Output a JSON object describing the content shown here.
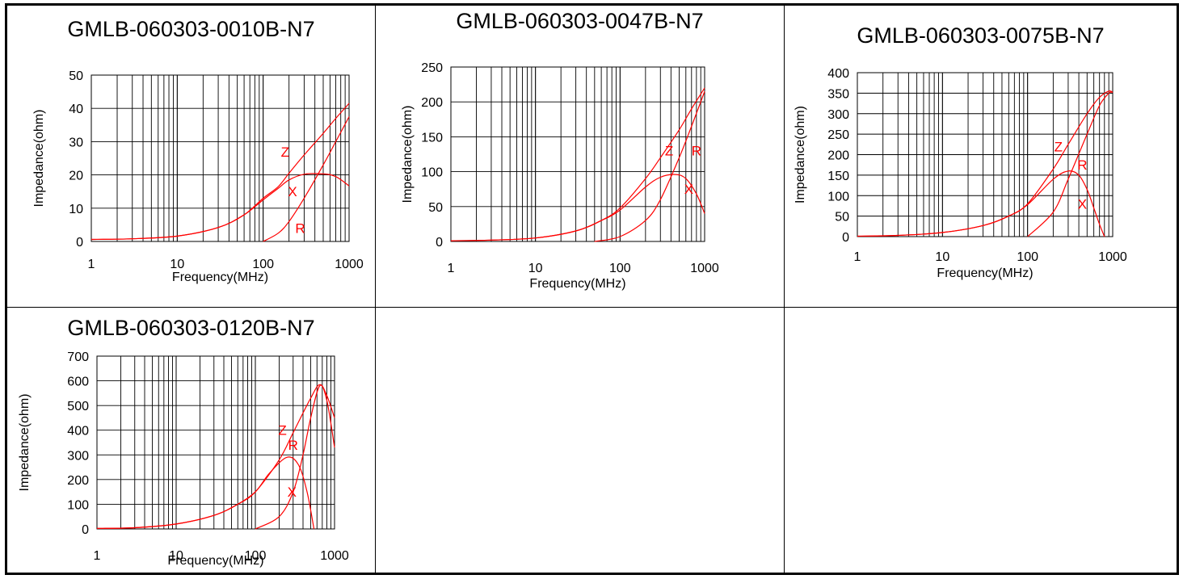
{
  "page": {
    "ylabel": "Impedance(ohm)",
    "xlabel": "Frequency(MHz)"
  },
  "colors": {
    "curve": "#ff0000",
    "grid": "#000000",
    "text": "#000000"
  },
  "chart_data": [
    {
      "type": "line",
      "title": "GMLB-060303-0010B-N7",
      "xlabel": "Frequency(MHz)",
      "ylabel": "Impedance(ohm)",
      "x_scale": "log",
      "xlim": [
        1,
        1000
      ],
      "ylim": [
        0,
        50
      ],
      "x_ticks": [
        1,
        10,
        100,
        1000
      ],
      "y_ticks": [
        0,
        10,
        20,
        30,
        40,
        50
      ],
      "grid": true,
      "series": [
        {
          "name": "Z",
          "x": [
            1,
            3,
            10,
            30,
            60,
            100,
            150,
            200,
            300,
            500,
            700,
            1000
          ],
          "values": [
            0.6,
            0.8,
            1.6,
            4.2,
            8.0,
            13,
            16.5,
            20.5,
            26,
            32.5,
            37,
            41.5
          ]
        },
        {
          "name": "X",
          "x": [
            1,
            3,
            10,
            30,
            60,
            100,
            150,
            200,
            300,
            500,
            700,
            1000
          ],
          "values": [
            0.6,
            0.8,
            1.6,
            4.2,
            8.0,
            12.5,
            16,
            18.5,
            20.2,
            20.3,
            19.5,
            16.7
          ]
        },
        {
          "name": "R",
          "x": [
            100,
            150,
            200,
            300,
            500,
            700,
            1000
          ],
          "values": [
            0,
            2.5,
            6,
            13,
            23,
            30,
            37.5
          ]
        }
      ],
      "annotations": [
        {
          "text": "Z",
          "x": 180,
          "y": 27
        },
        {
          "text": "X",
          "x": 220,
          "y": 15
        },
        {
          "text": "R",
          "x": 270,
          "y": 4
        }
      ]
    },
    {
      "type": "line",
      "title": "GMLB-060303-0047B-N7",
      "xlabel": "Frequency(MHz)",
      "ylabel": "Impedance(ohm)",
      "x_scale": "log",
      "xlim": [
        1,
        1000
      ],
      "ylim": [
        0,
        250
      ],
      "x_ticks": [
        1,
        10,
        100,
        1000
      ],
      "y_ticks": [
        0,
        50,
        100,
        150,
        200,
        250
      ],
      "grid": true,
      "series": [
        {
          "name": "Z",
          "x": [
            1,
            3,
            10,
            30,
            60,
            100,
            200,
            300,
            500,
            700,
            1000
          ],
          "values": [
            1,
            2,
            5,
            15,
            30,
            48,
            90,
            120,
            160,
            190,
            220
          ]
        },
        {
          "name": "X",
          "x": [
            1,
            3,
            10,
            30,
            60,
            100,
            200,
            300,
            450,
            600,
            800,
            1000
          ],
          "values": [
            1,
            2,
            5,
            15,
            30,
            45,
            78,
            92,
            96,
            90,
            68,
            40
          ]
        },
        {
          "name": "R",
          "x": [
            50,
            100,
            200,
            300,
            500,
            700,
            1000
          ],
          "values": [
            0,
            7,
            30,
            60,
            120,
            165,
            215
          ]
        }
      ],
      "annotations": [
        {
          "text": "Z",
          "x": 380,
          "y": 130
        },
        {
          "text": "R",
          "x": 800,
          "y": 130
        },
        {
          "text": "X",
          "x": 650,
          "y": 75
        }
      ]
    },
    {
      "type": "line",
      "title": "GMLB-060303-0075B-N7",
      "xlabel": "Frequency(MHz)",
      "ylabel": "Impedance(ohm)",
      "x_scale": "log",
      "xlim": [
        1,
        1000
      ],
      "ylim": [
        0,
        400
      ],
      "x_ticks": [
        1,
        10,
        100,
        1000
      ],
      "y_ticks": [
        0,
        50,
        100,
        150,
        200,
        250,
        300,
        350,
        400
      ],
      "grid": true,
      "series": [
        {
          "name": "Z",
          "x": [
            1,
            3,
            10,
            30,
            60,
            100,
            200,
            300,
            500,
            700,
            900,
            1000
          ],
          "values": [
            1,
            3,
            10,
            27,
            50,
            80,
            165,
            225,
            300,
            340,
            355,
            352
          ]
        },
        {
          "name": "X",
          "x": [
            1,
            3,
            10,
            30,
            60,
            100,
            200,
            300,
            400,
            500,
            600,
            700,
            800
          ],
          "values": [
            1,
            3,
            10,
            27,
            50,
            78,
            140,
            160,
            150,
            115,
            70,
            30,
            0
          ]
        },
        {
          "name": "R",
          "x": [
            100,
            200,
            300,
            500,
            700,
            900,
            1000
          ],
          "values": [
            0,
            60,
            140,
            250,
            320,
            350,
            352
          ]
        }
      ],
      "annotations": [
        {
          "text": "Z",
          "x": 230,
          "y": 220
        },
        {
          "text": "R",
          "x": 440,
          "y": 175
        },
        {
          "text": "X",
          "x": 440,
          "y": 80
        }
      ]
    },
    {
      "type": "line",
      "title": "GMLB-060303-0120B-N7",
      "xlabel": "Frequency(MHz)",
      "ylabel": "Impedance(ohm)",
      "x_scale": "log",
      "xlim": [
        1,
        1000
      ],
      "ylim": [
        0,
        700
      ],
      "x_ticks": [
        1,
        10,
        100,
        1000
      ],
      "y_ticks": [
        0,
        100,
        200,
        300,
        400,
        500,
        600,
        700
      ],
      "grid": true,
      "series": [
        {
          "name": "Z",
          "x": [
            1,
            3,
            10,
            30,
            60,
            100,
            200,
            300,
            500,
            650,
            800,
            1000
          ],
          "values": [
            2,
            5,
            20,
            55,
            100,
            150,
            280,
            390,
            530,
            585,
            540,
            450
          ]
        },
        {
          "name": "X",
          "x": [
            1,
            3,
            10,
            30,
            60,
            100,
            150,
            250,
            350,
            450,
            550
          ],
          "values": [
            2,
            5,
            20,
            55,
            100,
            150,
            225,
            290,
            260,
            150,
            0
          ]
        },
        {
          "name": "R",
          "x": [
            100,
            200,
            300,
            400,
            500,
            650,
            800,
            1000
          ],
          "values": [
            0,
            50,
            150,
            300,
            450,
            580,
            520,
            330
          ]
        }
      ],
      "annotations": [
        {
          "text": "Z",
          "x": 220,
          "y": 400
        },
        {
          "text": "R",
          "x": 300,
          "y": 340
        },
        {
          "text": "X",
          "x": 290,
          "y": 150
        }
      ]
    }
  ]
}
